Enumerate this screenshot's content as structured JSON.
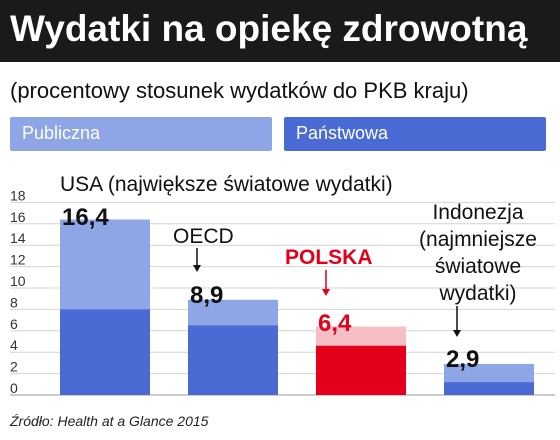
{
  "title": "Wydatki na opiekę zdrowotną",
  "subtitle": "(procentowy stosunek wydatków do PKB kraju)",
  "legend": [
    {
      "label": "Publiczna",
      "color": "#8ea5e6"
    },
    {
      "label": "Państwowa",
      "color": "#4a6bd4"
    }
  ],
  "source": "Źródło: Health at a Glance 2015",
  "colors": {
    "light": "#8ea5e6",
    "dark": "#4a6bd4",
    "poland_light": "#f6bfc5",
    "poland_dark": "#e3001b",
    "poland_label": "#e3001b"
  },
  "chart_data": {
    "type": "bar",
    "title": "Wydatki na opiekę zdrowotną",
    "subtitle": "(procentowy stosunek wydatków do PKB kraju)",
    "categories": [
      "USA",
      "OECD",
      "POLSKA",
      "Indonezja"
    ],
    "annotations": [
      [
        "USA (największe światowe wydatki)"
      ],
      [
        "OECD"
      ],
      [
        "POLSKA"
      ],
      [
        "Indonezja",
        "(najmniejsze",
        "światowe",
        "wydatki)"
      ]
    ],
    "series": [
      {
        "name": "Państwowa",
        "values": [
          8.0,
          6.5,
          4.6,
          1.2
        ]
      },
      {
        "name": "Publiczna",
        "values": [
          16.4,
          8.9,
          6.4,
          2.9
        ]
      }
    ],
    "total_labels": [
      "16,4",
      "8,9",
      "6,4",
      "2,9"
    ],
    "yticks": [
      0,
      2,
      4,
      6,
      8,
      10,
      12,
      14,
      16,
      18
    ],
    "ylim": [
      0,
      19
    ],
    "grid": true,
    "legend_position": "top"
  }
}
